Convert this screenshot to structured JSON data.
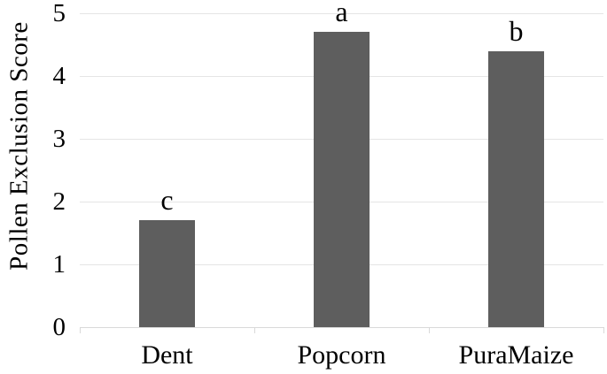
{
  "chart_data": {
    "type": "bar",
    "categories": [
      "Dent",
      "Popcorn",
      "PuraMaize"
    ],
    "values": [
      1.7,
      4.7,
      4.4
    ],
    "bar_letters": [
      "c",
      "a",
      "b"
    ],
    "title": "",
    "xlabel": "",
    "ylabel": "Pollen Exclusion Score",
    "ylim": [
      0,
      5
    ],
    "yticks": [
      0,
      1,
      2,
      3,
      4,
      5
    ],
    "grid": true,
    "legend": "none",
    "colors": {
      "bar": "#5e5e5e",
      "gridline": "#e5e5e5",
      "axis": "#d9d9d9",
      "text": "#000000",
      "background": "#ffffff"
    }
  }
}
